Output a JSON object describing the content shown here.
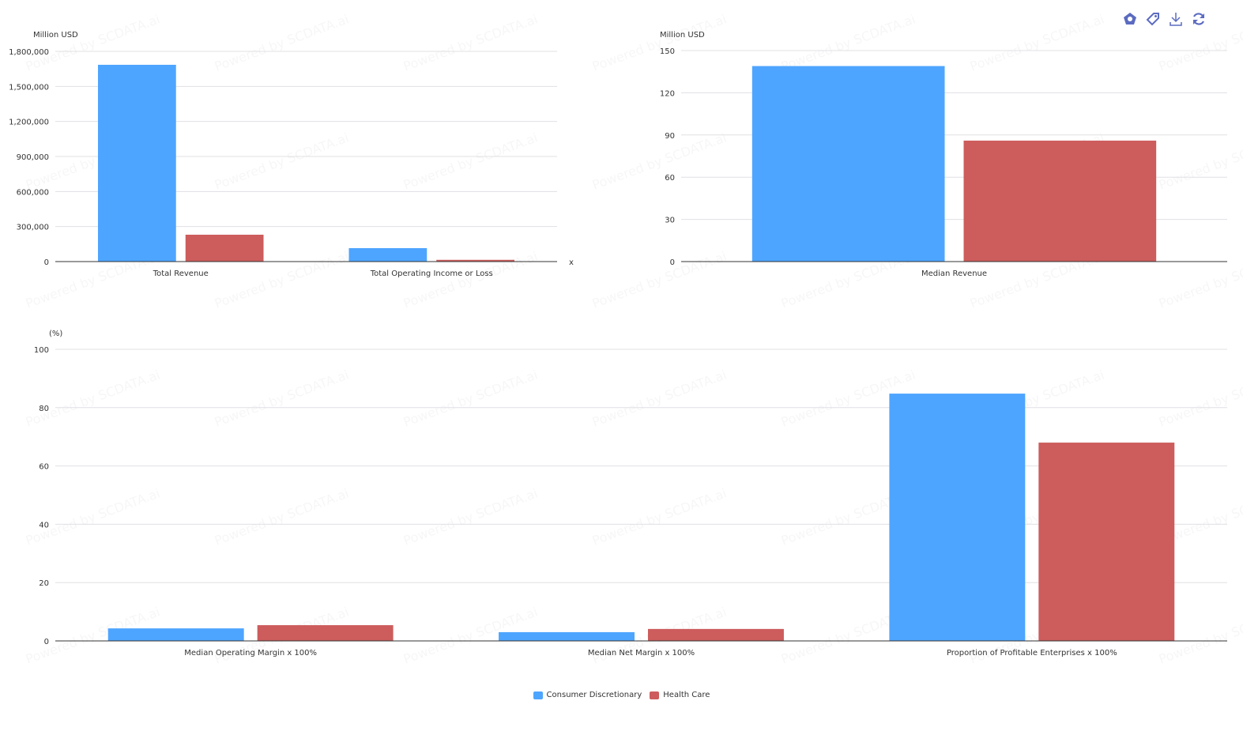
{
  "watermark": "Powered by SCDATA.ai",
  "colors": {
    "Consumer Discretionary": "#4ea5ff",
    "Health Care": "#cd5c5c",
    "grid": "#e0e0e6",
    "axis": "#333333",
    "toolbar": "#5b6bc0"
  },
  "toolbar": {
    "icons": [
      "chart-type-icon",
      "tag-icon",
      "download-icon",
      "refresh-icon"
    ]
  },
  "legend": [
    {
      "name": "Consumer Discretionary",
      "color": "#4ea5ff"
    },
    {
      "name": "Health Care",
      "color": "#cd5c5c"
    }
  ],
  "chart_data": [
    {
      "type": "bar",
      "ylabel": "Million USD",
      "xlabel": "x",
      "categories": [
        "Total Revenue",
        "Total Operating Income or Loss"
      ],
      "yticks": [
        "0",
        "300,000",
        "600,000",
        "900,000",
        "1,200,000",
        "1,500,000",
        "1,800,000"
      ],
      "ylim": [
        0,
        1800000
      ],
      "grid": true,
      "series": [
        {
          "name": "Consumer Discretionary",
          "values": [
            1685000,
            115000
          ]
        },
        {
          "name": "Health Care",
          "values": [
            230000,
            15000
          ]
        }
      ]
    },
    {
      "type": "bar",
      "ylabel": "Million USD",
      "categories": [
        "Median Revenue"
      ],
      "yticks": [
        "0",
        "30",
        "60",
        "90",
        "120",
        "150"
      ],
      "ylim": [
        0,
        150
      ],
      "grid": true,
      "series": [
        {
          "name": "Consumer Discretionary",
          "values": [
            139
          ]
        },
        {
          "name": "Health Care",
          "values": [
            86
          ]
        }
      ]
    },
    {
      "type": "bar",
      "ylabel": "(%)",
      "categories": [
        "Median Operating Margin x 100%",
        "Median Net Margin x 100%",
        "Proportion of Profitable Enterprises x 100%"
      ],
      "yticks": [
        "0",
        "20",
        "40",
        "60",
        "80",
        "100"
      ],
      "ylim": [
        0,
        100
      ],
      "grid": true,
      "legend": "bottom",
      "series": [
        {
          "name": "Consumer Discretionary",
          "values": [
            4.3,
            3.0,
            84.8
          ]
        },
        {
          "name": "Health Care",
          "values": [
            5.4,
            4.1,
            68.0
          ]
        }
      ]
    }
  ]
}
